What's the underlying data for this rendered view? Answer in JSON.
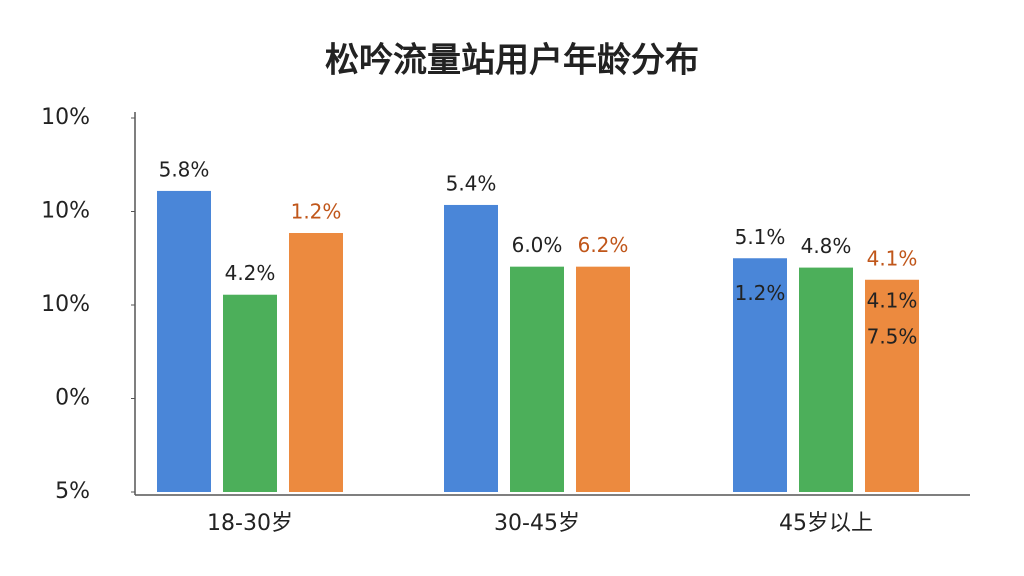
{
  "chart_data": {
    "type": "bar",
    "title": "松吟流量站用户年龄分布",
    "categories": [
      "18-30岁",
      "30-45岁",
      "45岁以上"
    ],
    "series": [
      {
        "color": "#4a86d8",
        "label_color": "#222222",
        "values": [
          3.22,
          3.07,
          2.5
        ],
        "annotations": [
          [
            "5.8%"
          ],
          [
            "5.4%"
          ],
          [
            "5.1%",
            "1.2%"
          ]
        ]
      },
      {
        "color": "#4caf5a",
        "label_color": "#222222",
        "values": [
          2.11,
          2.41,
          2.4
        ],
        "annotations": [
          [
            "4.2%"
          ],
          [
            "6.0%"
          ],
          [
            "4.8%"
          ]
        ]
      },
      {
        "color": "#ec8a3f",
        "label_color": "#c0561a",
        "values": [
          2.77,
          2.41,
          2.27
        ],
        "annotations": [
          [
            "1.2%"
          ],
          [
            "6.2%"
          ],
          [
            "4.1%",
            "4.1%",
            "7.5%"
          ]
        ]
      }
    ],
    "ylim": [
      0,
      4
    ],
    "yticks": [
      {
        "value": 0,
        "label": "5%"
      },
      {
        "value": 1,
        "label": "0%"
      },
      {
        "value": 2,
        "label": "10%"
      },
      {
        "value": 3,
        "label": "10%"
      },
      {
        "value": 4,
        "label": "10%"
      }
    ]
  }
}
